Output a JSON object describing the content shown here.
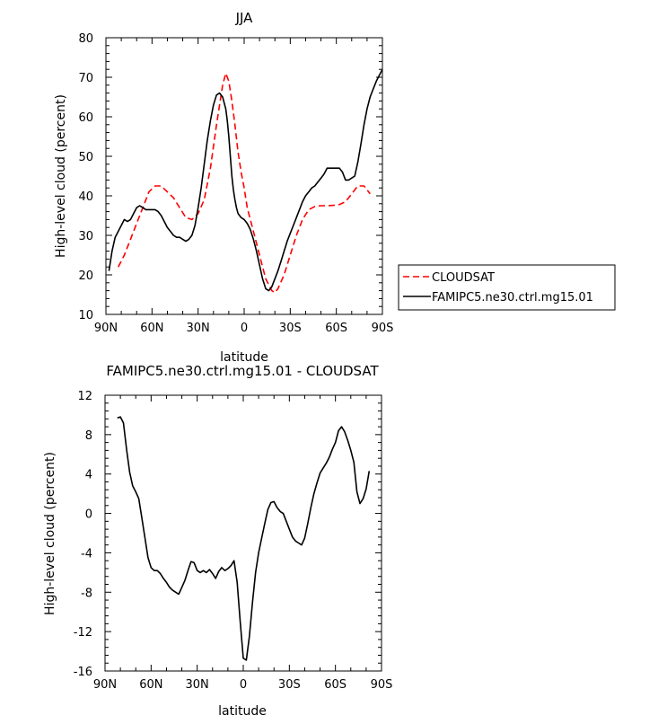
{
  "chart_data": [
    {
      "type": "line",
      "title": "JJA",
      "xlabel": "latitude",
      "ylabel": "High-level cloud (percent)",
      "xlim": [
        90,
        -90
      ],
      "ylim": [
        10,
        80
      ],
      "xticks": [
        90,
        60,
        30,
        0,
        -30,
        -60,
        -90
      ],
      "xtick_labels": [
        "90N",
        "60N",
        "30N",
        "0",
        "30S",
        "60S",
        "90S"
      ],
      "yticks": [
        10,
        20,
        30,
        40,
        50,
        60,
        70,
        80
      ],
      "ytick_labels": [
        "10",
        "20",
        "30",
        "40",
        "50",
        "60",
        "70",
        "80"
      ],
      "grid": false,
      "legend_position": "right",
      "series": [
        {
          "name": "CLOUDSAT",
          "color": "#ff0000",
          "dash": "dashed",
          "x": [
            82,
            78,
            74,
            70,
            66,
            62,
            58,
            54,
            50,
            46,
            42,
            38,
            34,
            30,
            26,
            22,
            18,
            14,
            12,
            10,
            8,
            6,
            4,
            2,
            0,
            -2,
            -6,
            -10,
            -14,
            -18,
            -20,
            -22,
            -26,
            -30,
            -34,
            -38,
            -42,
            -46,
            -50,
            -54,
            -58,
            -62,
            -66,
            -70,
            -74,
            -78,
            -82
          ],
          "y": [
            22,
            25,
            29,
            33,
            37,
            41,
            42.5,
            42.5,
            41,
            39.5,
            37,
            34.5,
            34,
            35.5,
            39,
            47,
            58,
            68,
            71,
            69,
            64,
            58,
            51,
            46,
            42,
            37,
            31,
            25,
            19,
            16,
            15.5,
            16.5,
            20,
            25,
            30,
            34,
            36.5,
            37.3,
            37.5,
            37.5,
            37.6,
            37.8,
            38.5,
            40.5,
            42.5,
            42.5,
            40.5
          ]
        },
        {
          "name": "FAMIPC5.ne30.ctrl.mg15.01",
          "color": "#000000",
          "dash": "solid",
          "x": [
            88,
            86,
            84,
            82,
            80,
            78,
            76,
            74,
            72,
            70,
            68,
            66,
            64,
            62,
            60,
            58,
            56,
            54,
            52,
            50,
            48,
            46,
            44,
            42,
            40,
            38,
            36,
            34,
            32,
            30,
            28,
            26,
            24,
            22,
            20,
            18,
            16,
            14,
            12,
            11,
            10,
            9,
            8,
            7,
            6,
            5,
            4,
            2,
            0,
            -2,
            -4,
            -6,
            -8,
            -10,
            -12,
            -14,
            -16,
            -18,
            -20,
            -22,
            -24,
            -26,
            -28,
            -30,
            -32,
            -34,
            -36,
            -38,
            -40,
            -42,
            -44,
            -46,
            -48,
            -50,
            -52,
            -54,
            -56,
            -58,
            -60,
            -62,
            -64,
            -66,
            -68,
            -70,
            -72,
            -74,
            -76,
            -78,
            -80,
            -82,
            -84,
            -86,
            -88,
            -90
          ],
          "y": [
            21,
            26,
            29.5,
            31,
            32.5,
            34,
            33.5,
            34,
            35.5,
            37,
            37.5,
            37,
            36.5,
            36.5,
            36.5,
            36.5,
            36,
            35,
            33.5,
            32,
            31,
            30,
            29.5,
            29.5,
            29,
            28.5,
            29,
            30,
            32.5,
            37,
            42,
            48,
            54,
            59,
            63,
            65.5,
            66,
            65,
            62,
            59,
            55,
            50,
            45,
            41.5,
            39,
            37,
            35.5,
            34.5,
            34,
            33,
            31.5,
            29,
            26,
            22.5,
            19,
            16.5,
            16,
            17,
            19,
            21,
            23.5,
            26,
            28.5,
            30.5,
            32.5,
            34.5,
            36.5,
            38.5,
            40,
            41,
            42,
            42.5,
            43.5,
            44.5,
            45.5,
            47,
            47,
            47,
            47,
            47,
            46,
            44,
            44,
            44.5,
            45,
            48.5,
            53,
            58,
            62,
            65,
            67,
            69,
            70.5,
            72
          ]
        }
      ]
    },
    {
      "type": "line",
      "title": "FAMIPC5.ne30.ctrl.mg15.01 - CLOUDSAT",
      "xlabel": "latitude",
      "ylabel": "High-level cloud (percent)",
      "xlim": [
        90,
        -90
      ],
      "ylim": [
        -16,
        12
      ],
      "xticks": [
        90,
        60,
        30,
        0,
        -30,
        -60,
        -90
      ],
      "xtick_labels": [
        "90N",
        "60N",
        "30N",
        "0",
        "30S",
        "60S",
        "90S"
      ],
      "yticks": [
        -16,
        -12,
        -8,
        -4,
        0,
        4,
        8,
        12
      ],
      "ytick_labels": [
        "-16",
        "-12",
        "-8",
        "-4",
        "0",
        "4",
        "8",
        "12"
      ],
      "grid": false,
      "series": [
        {
          "color": "#000000",
          "dash": "solid",
          "x": [
            82,
            80,
            78,
            76,
            74,
            72,
            70,
            68,
            66,
            64,
            62,
            60,
            58,
            56,
            54,
            52,
            50,
            48,
            46,
            44,
            42,
            40,
            38,
            36,
            34,
            32,
            30,
            28,
            26,
            24,
            22,
            20,
            18,
            16,
            14,
            12,
            10,
            8,
            6,
            4,
            2,
            0,
            -2,
            -4,
            -6,
            -8,
            -10,
            -12,
            -14,
            -16,
            -18,
            -20,
            -22,
            -24,
            -26,
            -28,
            -30,
            -32,
            -34,
            -36,
            -38,
            -40,
            -42,
            -44,
            -46,
            -48,
            -50,
            -52,
            -54,
            -56,
            -58,
            -60,
            -62,
            -64,
            -66,
            -68,
            -70,
            -72,
            -74,
            -76,
            -78,
            -80,
            -82
          ],
          "y": [
            9.7,
            9.8,
            9.2,
            6.5,
            4.2,
            2.8,
            2.2,
            1.5,
            -0.5,
            -2.5,
            -4.5,
            -5.5,
            -5.8,
            -5.8,
            -6.1,
            -6.6,
            -7.0,
            -7.5,
            -7.8,
            -8.0,
            -8.2,
            -7.5,
            -6.8,
            -5.8,
            -4.9,
            -5.0,
            -5.8,
            -6.0,
            -5.8,
            -6.0,
            -5.7,
            -6.1,
            -6.6,
            -5.9,
            -5.5,
            -5.8,
            -5.6,
            -5.3,
            -4.8,
            -7.0,
            -11.0,
            -14.7,
            -14.9,
            -12.5,
            -9.0,
            -6.0,
            -4.0,
            -2.5,
            -1.0,
            0.4,
            1.1,
            1.2,
            0.6,
            0.2,
            0.0,
            -0.8,
            -1.6,
            -2.4,
            -2.8,
            -3.0,
            -3.2,
            -2.5,
            -1.0,
            0.6,
            2.0,
            3.1,
            4.1,
            4.6,
            5.1,
            5.7,
            6.5,
            7.2,
            8.4,
            8.8,
            8.3,
            7.4,
            6.4,
            5.2,
            2.2,
            1.0,
            1.5,
            2.5,
            4.3
          ]
        }
      ]
    }
  ],
  "legend": {
    "items": [
      {
        "label": "CLOUDSAT",
        "color": "#ff0000",
        "dash": "dashed"
      },
      {
        "label": "FAMIPC5.ne30.ctrl.mg15.01",
        "color": "#000000",
        "dash": "solid"
      }
    ]
  }
}
